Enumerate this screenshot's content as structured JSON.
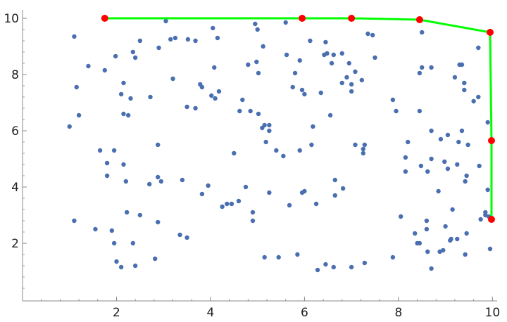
{
  "chart_data": {
    "type": "scatter",
    "title": "",
    "xlabel": "",
    "ylabel": "",
    "xlim": [
      0,
      10.1
    ],
    "ylim": [
      -0.05,
      10.3
    ],
    "grid": false,
    "x_ticks": [
      2,
      4,
      6,
      8,
      10
    ],
    "y_ticks": [
      2,
      4,
      6,
      8,
      10
    ],
    "x_tick_labels": [
      "2",
      "4",
      "6",
      "8",
      "10"
    ],
    "y_tick_labels": [
      "2",
      "4",
      "6",
      "8",
      "10"
    ],
    "x_minor_step": 0.4,
    "y_minor_step": 0.4,
    "colors": {
      "points": "#4a6fb0",
      "hull": "#00ff00",
      "hull_vertices": "#ff0000",
      "axis": "#888888"
    },
    "series": [
      {
        "kind": "points",
        "points": [
          [
            1.0,
            6.15
          ],
          [
            1.1,
            9.35
          ],
          [
            1.1,
            2.8
          ],
          [
            1.15,
            7.55
          ],
          [
            1.2,
            6.55
          ],
          [
            1.4,
            8.3
          ],
          [
            1.55,
            2.5
          ],
          [
            1.65,
            5.3
          ],
          [
            1.75,
            8.15
          ],
          [
            1.8,
            4.4
          ],
          [
            1.8,
            4.85
          ],
          [
            1.9,
            2.45
          ],
          [
            1.95,
            5.3
          ],
          [
            1.95,
            2.0
          ],
          [
            1.98,
            8.65
          ],
          [
            2.0,
            1.35
          ],
          [
            2.1,
            7.3
          ],
          [
            2.1,
            1.15
          ],
          [
            2.15,
            4.8
          ],
          [
            2.15,
            7.7
          ],
          [
            2.15,
            6.6
          ],
          [
            2.2,
            4.2
          ],
          [
            2.22,
            3.1
          ],
          [
            2.25,
            6.55
          ],
          [
            2.3,
            7.15
          ],
          [
            2.35,
            8.8
          ],
          [
            2.35,
            2.0
          ],
          [
            2.4,
            8.6
          ],
          [
            2.4,
            1.2
          ],
          [
            2.5,
            9.2
          ],
          [
            2.5,
            3.0
          ],
          [
            2.7,
            4.1
          ],
          [
            2.72,
            7.2
          ],
          [
            2.82,
            1.45
          ],
          [
            2.88,
            5.5
          ],
          [
            2.88,
            4.35
          ],
          [
            2.88,
            2.75
          ],
          [
            2.9,
            8.95
          ],
          [
            2.95,
            4.2
          ],
          [
            3.05,
            9.9
          ],
          [
            3.15,
            9.25
          ],
          [
            3.2,
            7.85
          ],
          [
            3.25,
            9.3
          ],
          [
            3.35,
            2.3
          ],
          [
            3.4,
            4.25
          ],
          [
            3.5,
            6.85
          ],
          [
            3.52,
            9.25
          ],
          [
            3.5,
            2.2
          ],
          [
            3.68,
            9.2
          ],
          [
            3.68,
            6.8
          ],
          [
            3.78,
            7.65
          ],
          [
            3.82,
            7.55
          ],
          [
            3.82,
            3.75
          ],
          [
            3.95,
            4.05
          ],
          [
            4.02,
            7.25
          ],
          [
            4.05,
            9.65
          ],
          [
            4.08,
            8.25
          ],
          [
            4.1,
            7.15
          ],
          [
            4.15,
            9.3
          ],
          [
            4.18,
            7.4
          ],
          [
            4.25,
            3.3
          ],
          [
            4.35,
            3.4
          ],
          [
            4.45,
            3.4
          ],
          [
            4.5,
            5.2
          ],
          [
            4.6,
            3.5
          ],
          [
            4.62,
            6.7
          ],
          [
            4.68,
            7.1
          ],
          [
            4.75,
            4.0
          ],
          [
            4.8,
            8.35
          ],
          [
            4.85,
            6.7
          ],
          [
            4.9,
            3.1
          ],
          [
            4.9,
            2.8
          ],
          [
            4.95,
            9.8
          ],
          [
            4.98,
            8.45
          ],
          [
            5.0,
            9.6
          ],
          [
            5.02,
            8.05
          ],
          [
            5.02,
            6.6
          ],
          [
            5.1,
            6.1
          ],
          [
            5.12,
            9.0
          ],
          [
            5.15,
            1.5
          ],
          [
            5.15,
            6.2
          ],
          [
            5.18,
            5.6
          ],
          [
            5.25,
            6.2
          ],
          [
            5.25,
            6.0
          ],
          [
            5.25,
            3.8
          ],
          [
            5.4,
            5.3
          ],
          [
            5.45,
            1.5
          ],
          [
            5.55,
            5.1
          ],
          [
            5.6,
            9.85
          ],
          [
            5.62,
            8.7
          ],
          [
            5.68,
            3.35
          ],
          [
            5.75,
            7.55
          ],
          [
            5.8,
            8.05
          ],
          [
            5.85,
            1.6
          ],
          [
            5.9,
            8.5
          ],
          [
            5.9,
            5.3
          ],
          [
            5.95,
            7.45
          ],
          [
            5.95,
            3.8
          ],
          [
            6.0,
            7.3
          ],
          [
            6.0,
            3.85
          ],
          [
            6.12,
            9.2
          ],
          [
            6.15,
            5.5
          ],
          [
            6.18,
            6.15
          ],
          [
            6.25,
            3.4
          ],
          [
            6.28,
            1.05
          ],
          [
            6.35,
            7.35
          ],
          [
            6.42,
            8.7
          ],
          [
            6.45,
            1.25
          ],
          [
            6.45,
            9.15
          ],
          [
            6.48,
            8.75
          ],
          [
            6.55,
            6.55
          ],
          [
            6.58,
            8.4
          ],
          [
            6.62,
            8.7
          ],
          [
            6.62,
            1.15
          ],
          [
            6.65,
            4.25
          ],
          [
            6.65,
            3.7
          ],
          [
            6.8,
            7.7
          ],
          [
            6.8,
            8.75
          ],
          [
            6.82,
            3.95
          ],
          [
            6.9,
            7.9
          ],
          [
            6.95,
            8.4
          ],
          [
            7.0,
            7.4
          ],
          [
            7.0,
            7.65
          ],
          [
            7.0,
            1.15
          ],
          [
            7.08,
            8.1
          ],
          [
            7.08,
            5.5
          ],
          [
            7.22,
            7.8
          ],
          [
            7.25,
            5.35
          ],
          [
            7.25,
            5.2
          ],
          [
            7.28,
            5.5
          ],
          [
            7.28,
            1.3
          ],
          [
            7.35,
            9.45
          ],
          [
            7.45,
            9.4
          ],
          [
            7.5,
            8.6
          ],
          [
            7.88,
            7.1
          ],
          [
            7.88,
            1.5
          ],
          [
            7.95,
            6.7
          ],
          [
            8.05,
            2.95
          ],
          [
            8.15,
            5.05
          ],
          [
            8.15,
            4.55
          ],
          [
            8.2,
            5.6
          ],
          [
            8.35,
            2.35
          ],
          [
            8.4,
            2.0
          ],
          [
            8.45,
            2.0
          ],
          [
            8.45,
            6.7
          ],
          [
            8.45,
            8.05
          ],
          [
            8.48,
            4.75
          ],
          [
            8.5,
            8.25
          ],
          [
            8.5,
            9.5
          ],
          [
            8.6,
            2.5
          ],
          [
            8.6,
            2.8
          ],
          [
            8.62,
            1.7
          ],
          [
            8.62,
            4.55
          ],
          [
            8.7,
            6.0
          ],
          [
            8.7,
            5.0
          ],
          [
            8.7,
            8.25
          ],
          [
            8.7,
            1.1
          ],
          [
            8.85,
            3.85
          ],
          [
            8.88,
            1.7
          ],
          [
            8.9,
            5.7
          ],
          [
            8.95,
            1.75
          ],
          [
            8.98,
            4.9
          ],
          [
            9.0,
            2.6
          ],
          [
            9.05,
            5.85
          ],
          [
            9.05,
            4.65
          ],
          [
            9.1,
            2.1
          ],
          [
            9.12,
            2.15
          ],
          [
            9.15,
            3.2
          ],
          [
            9.2,
            7.9
          ],
          [
            9.25,
            4.8
          ],
          [
            9.25,
            2.15
          ],
          [
            9.28,
            5.6
          ],
          [
            9.3,
            8.35
          ],
          [
            9.35,
            8.35
          ],
          [
            9.35,
            6.0
          ],
          [
            9.4,
            7.45
          ],
          [
            9.4,
            7.7
          ],
          [
            9.42,
            4.2
          ],
          [
            9.42,
            1.6
          ],
          [
            9.45,
            2.35
          ],
          [
            9.45,
            4.4
          ],
          [
            9.48,
            5.5
          ],
          [
            9.6,
            7.05
          ],
          [
            9.7,
            8.95
          ],
          [
            9.7,
            7.2
          ],
          [
            9.72,
            4.75
          ],
          [
            9.75,
            2.85
          ],
          [
            9.85,
            3.1
          ],
          [
            9.85,
            3.0
          ],
          [
            9.9,
            6.3
          ],
          [
            9.9,
            3.9
          ],
          [
            9.92,
            2.95
          ],
          [
            9.95,
            1.8
          ]
        ]
      },
      {
        "kind": "hull",
        "points": [
          [
            1.75,
            10.0
          ],
          [
            5.95,
            10.0
          ],
          [
            7.0,
            10.0
          ],
          [
            8.45,
            9.95
          ],
          [
            9.95,
            9.5
          ],
          [
            9.98,
            5.65
          ],
          [
            9.98,
            2.85
          ]
        ]
      }
    ]
  }
}
